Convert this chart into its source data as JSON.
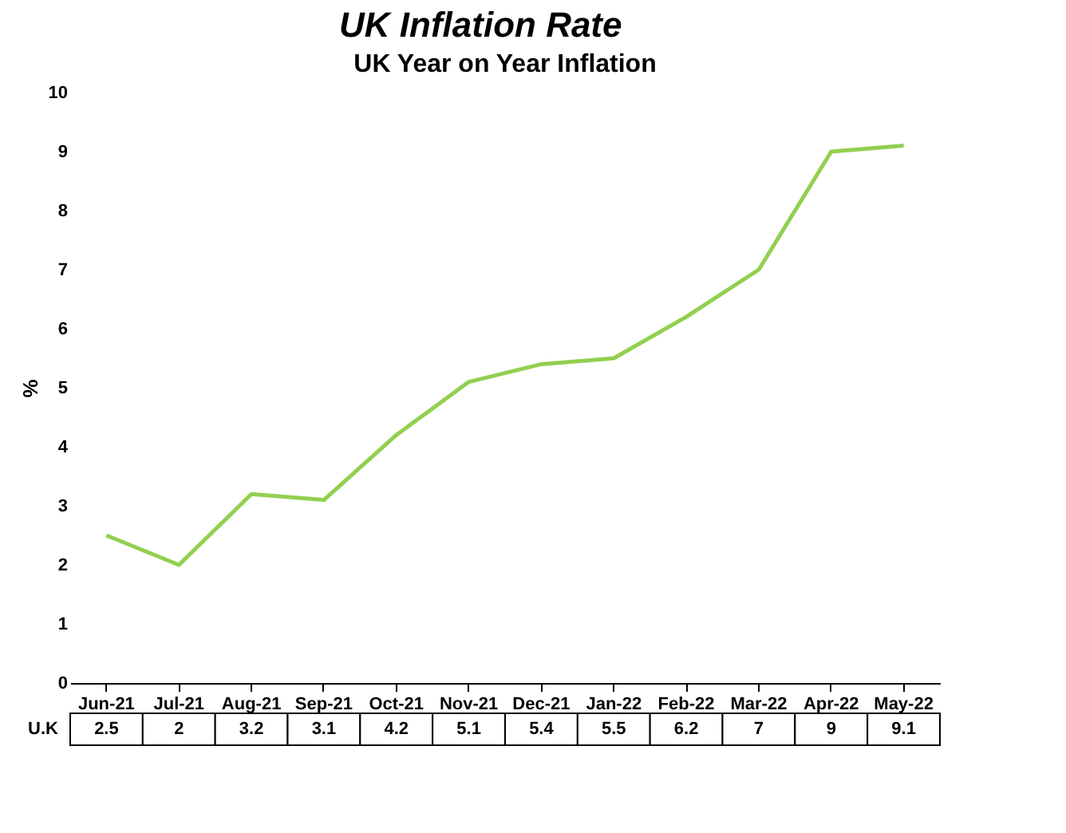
{
  "chart_data": {
    "type": "line",
    "title": "UK Inflation Rate",
    "subtitle": "UK Year on Year Inflation",
    "ylabel": "%",
    "categories": [
      "Jun-21",
      "Jul-21",
      "Aug-21",
      "Sep-21",
      "Oct-21",
      "Nov-21",
      "Dec-21",
      "Jan-22",
      "Feb-22",
      "Mar-22",
      "Apr-22",
      "May-22"
    ],
    "series": [
      {
        "name": "U.K",
        "color": "#92d050",
        "values": [
          2.5,
          2,
          3.2,
          3.1,
          4.2,
          5.1,
          5.4,
          5.5,
          6.2,
          7,
          9,
          9.1
        ]
      }
    ],
    "ylim": [
      0,
      10
    ],
    "yticks": [
      0,
      1,
      2,
      3,
      4,
      5,
      6,
      7,
      8,
      9,
      10
    ],
    "data_labels": true,
    "marker": "none",
    "grid": false
  }
}
